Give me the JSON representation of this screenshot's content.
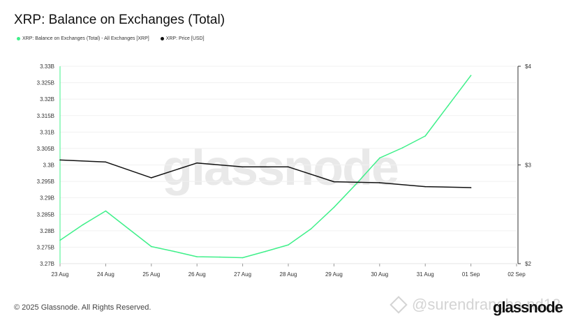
{
  "page": {
    "title": "XRP: Balance on Exchanges (Total)",
    "copyright": "© 2025 Glassnode. All Rights Reserved.",
    "watermark": "glassnode",
    "brand": "glassnode",
    "handle": "@surendrangha nd12"
  },
  "legend": [
    {
      "label": "XRP: Balance on Exchanges (Total) - All Exchanges [XRP]",
      "color": "#3ff08a"
    },
    {
      "label": "XRP: Price [USD]",
      "color": "#111111"
    }
  ],
  "chart_data": {
    "type": "line",
    "title": "XRP: Balance on Exchanges (Total)",
    "x_ticks": [
      "23 Aug",
      "24 Aug",
      "25 Aug",
      "26 Aug",
      "27 Aug",
      "28 Aug",
      "29 Aug",
      "30 Aug",
      "31 Aug",
      "01 Sep",
      "02 Sep"
    ],
    "y_left": {
      "ticks": [
        "3.27B",
        "3.275B",
        "3.28B",
        "3.285B",
        "3.29B",
        "3.295B",
        "3.3B",
        "3.305B",
        "3.31B",
        "3.315B",
        "3.32B",
        "3.325B",
        "3.33B"
      ],
      "range": [
        3.27,
        3.33
      ],
      "unit": "B"
    },
    "y_right": {
      "ticks": [
        "$2",
        "$3",
        "$4"
      ],
      "range": [
        2,
        4
      ]
    },
    "series": [
      {
        "name": "XRP: Balance on Exchanges (Total) - All Exchanges [XRP]",
        "axis": "left",
        "color": "#3ff08a",
        "x": [
          0,
          0.5,
          1,
          1.5,
          2,
          2.5,
          3,
          3.5,
          4,
          4.5,
          5,
          5.5,
          6,
          6.5,
          7,
          7.5,
          8,
          8.5,
          9
        ],
        "values": [
          3.2771,
          3.2818,
          3.286,
          3.2806,
          3.2752,
          3.2737,
          3.2721,
          3.272,
          3.2718,
          3.2737,
          3.2757,
          3.2806,
          3.2871,
          3.2944,
          3.3021,
          3.3052,
          3.3088,
          3.318,
          3.3272
        ]
      },
      {
        "name": "XRP: Price [USD]",
        "axis": "right",
        "color": "#111111",
        "x": [
          0,
          1,
          2,
          3,
          4,
          5,
          6,
          7,
          8,
          9
        ],
        "values": [
          3.05,
          3.03,
          2.87,
          3.02,
          2.98,
          2.98,
          2.83,
          2.82,
          2.78,
          2.77
        ]
      }
    ]
  }
}
